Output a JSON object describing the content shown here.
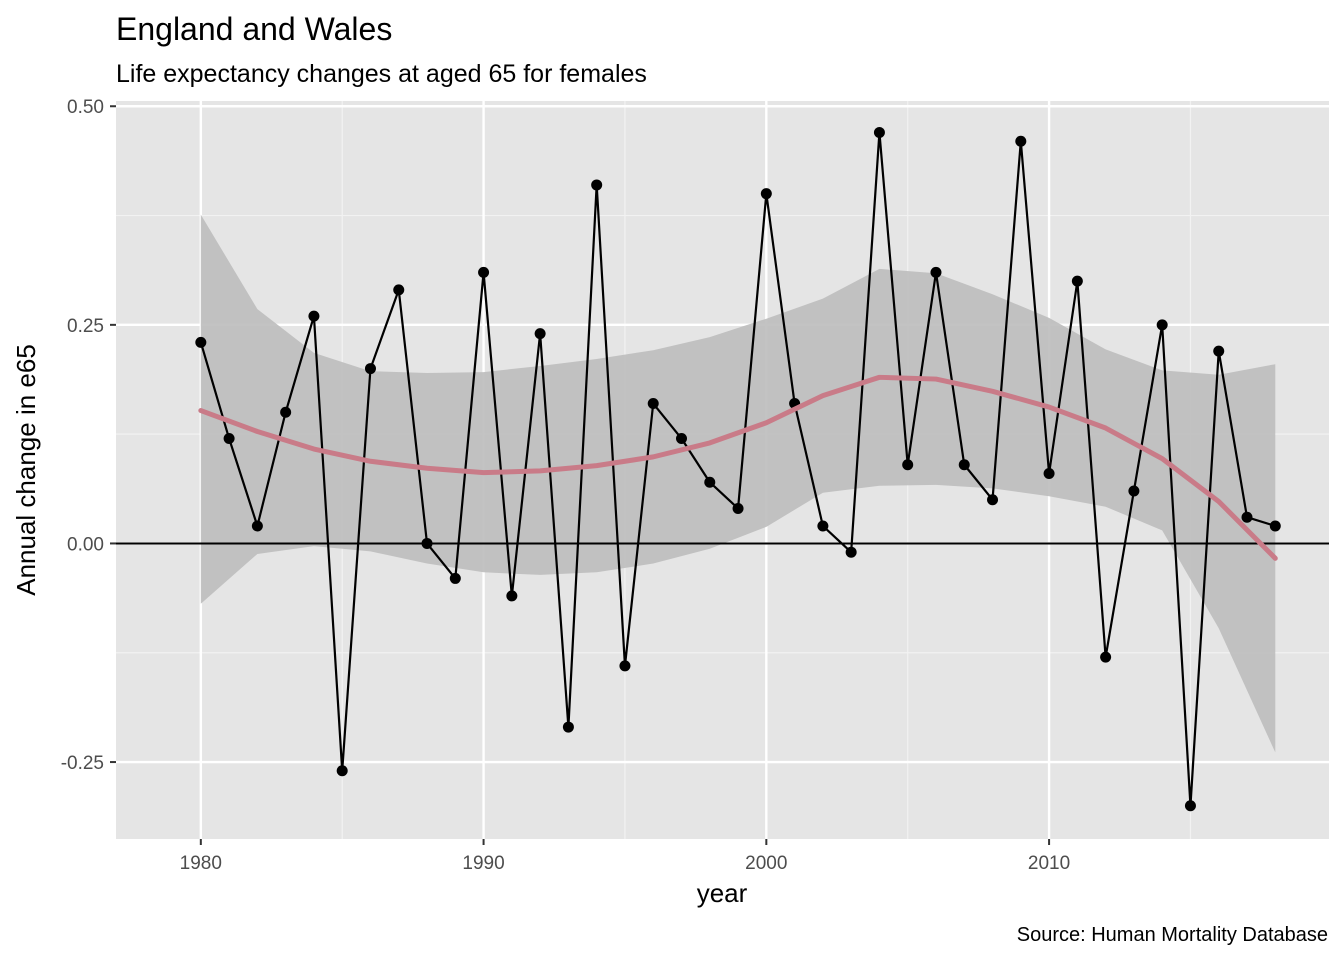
{
  "chart_data": {
    "type": "line",
    "title": "England and Wales",
    "subtitle": "Life expectancy changes at aged 65 for females",
    "xlabel": "year",
    "ylabel": "Annual change in e65",
    "caption": "Source: Human Mortality Database",
    "xlim": [
      1977,
      2019.9
    ],
    "ylim": [
      -0.338,
      0.506
    ],
    "x_ticks": [
      1980,
      1990,
      2000,
      2010
    ],
    "x_tick_labels": [
      "1980",
      "1990",
      "2000",
      "2010"
    ],
    "y_ticks": [
      -0.25,
      0,
      0.25,
      0.5
    ],
    "y_tick_labels": [
      "-0.25",
      "0.00",
      "0.25",
      "0.50"
    ],
    "reference_line": 0,
    "series": [
      {
        "name": "annual change",
        "kind": "line+points",
        "x": [
          1980,
          1981,
          1982,
          1983,
          1984,
          1985,
          1986,
          1987,
          1988,
          1989,
          1990,
          1991,
          1992,
          1993,
          1994,
          1995,
          1996,
          1997,
          1998,
          1999,
          2000,
          2001,
          2002,
          2003,
          2004,
          2005,
          2006,
          2007,
          2008,
          2009,
          2010,
          2011,
          2012,
          2013,
          2014,
          2015,
          2016,
          2017,
          2018
        ],
        "values": [
          0.23,
          0.12,
          0.02,
          0.15,
          0.26,
          -0.26,
          0.2,
          0.29,
          0.0,
          -0.04,
          0.31,
          -0.06,
          0.24,
          -0.21,
          0.41,
          -0.14,
          0.16,
          0.12,
          0.07,
          0.04,
          0.4,
          0.16,
          0.02,
          -0.01,
          0.47,
          0.09,
          0.31,
          0.09,
          0.05,
          0.46,
          0.08,
          0.3,
          -0.13,
          0.06,
          0.25,
          -0.3,
          0.22,
          0.03,
          0.02
        ],
        "color": "#000000"
      },
      {
        "name": "loess smooth",
        "kind": "smooth",
        "color": "#c97b88",
        "band_color": "#bdbdbd",
        "x": [
          1980,
          1982,
          1984,
          1986,
          1988,
          1990,
          1992,
          1994,
          1996,
          1998,
          2000,
          2002,
          2004,
          2006,
          2008,
          2010,
          2012,
          2014,
          2016,
          2018
        ],
        "values": [
          0.152,
          0.128,
          0.108,
          0.094,
          0.086,
          0.081,
          0.083,
          0.089,
          0.099,
          0.115,
          0.138,
          0.169,
          0.19,
          0.188,
          0.174,
          0.156,
          0.132,
          0.097,
          0.048,
          -0.017
        ],
        "upper": [
          0.376,
          0.268,
          0.218,
          0.197,
          0.195,
          0.196,
          0.203,
          0.211,
          0.221,
          0.236,
          0.257,
          0.28,
          0.314,
          0.309,
          0.285,
          0.258,
          0.222,
          0.198,
          0.193,
          0.205
        ],
        "lower": [
          -0.069,
          -0.012,
          -0.003,
          -0.009,
          -0.023,
          -0.033,
          -0.036,
          -0.033,
          -0.023,
          -0.006,
          0.019,
          0.058,
          0.066,
          0.067,
          0.063,
          0.054,
          0.042,
          0.015,
          -0.097,
          -0.239
        ]
      }
    ]
  }
}
